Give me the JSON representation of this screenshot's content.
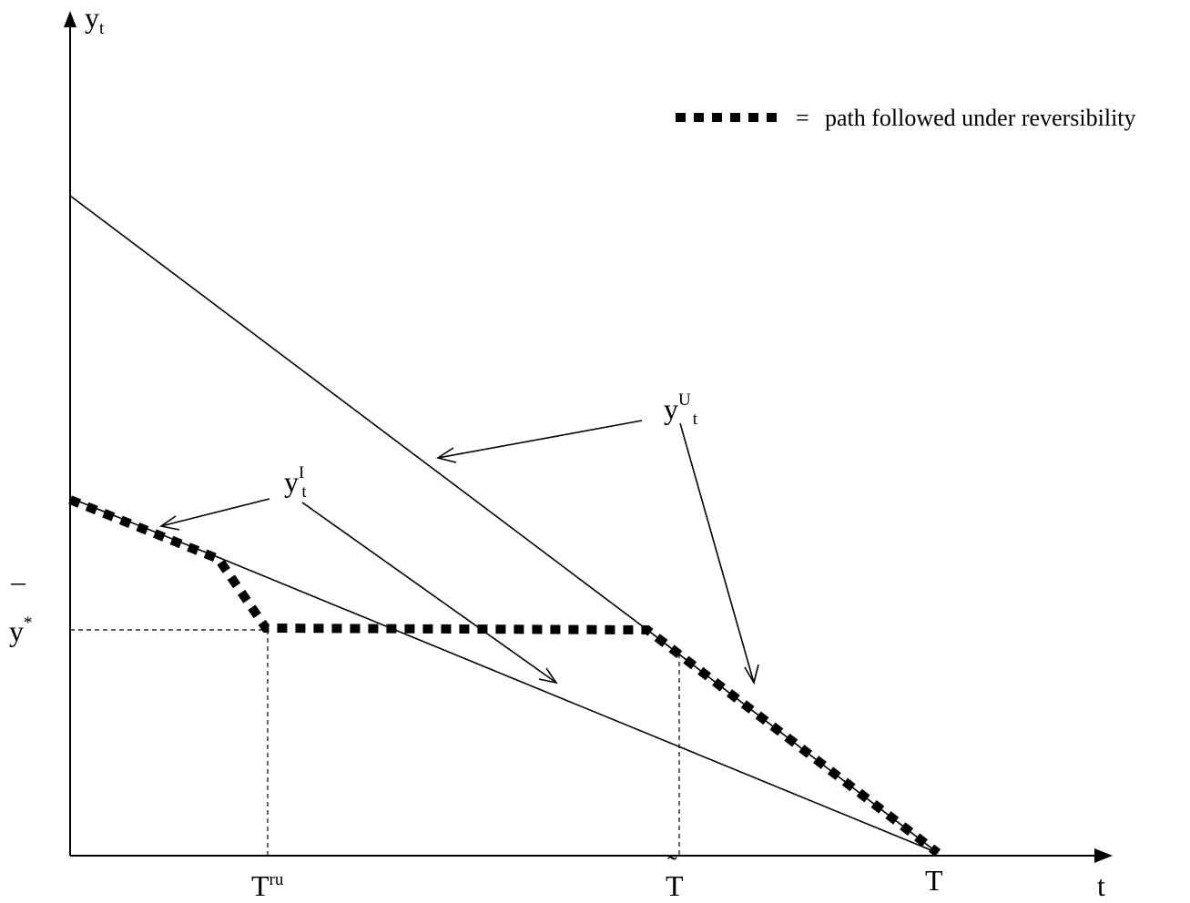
{
  "axis_labels": {
    "y": "y",
    "y_sub": "t",
    "x": "t"
  },
  "legend": {
    "equals": "=",
    "text": "path followed under reversibility"
  },
  "curve_labels": {
    "yU": {
      "base": "y",
      "sup": "U",
      "sub": "t"
    },
    "yI": {
      "base": "y",
      "sup": "I",
      "sub": "t"
    }
  },
  "y_level_label": {
    "base": "y",
    "bar": "¯",
    "star": "*"
  },
  "x_ticks": {
    "Tru": {
      "base": "T",
      "sup": "ru"
    },
    "Ttilde": {
      "base": "T",
      "tilde": "˜"
    },
    "T": {
      "base": "T"
    }
  }
}
